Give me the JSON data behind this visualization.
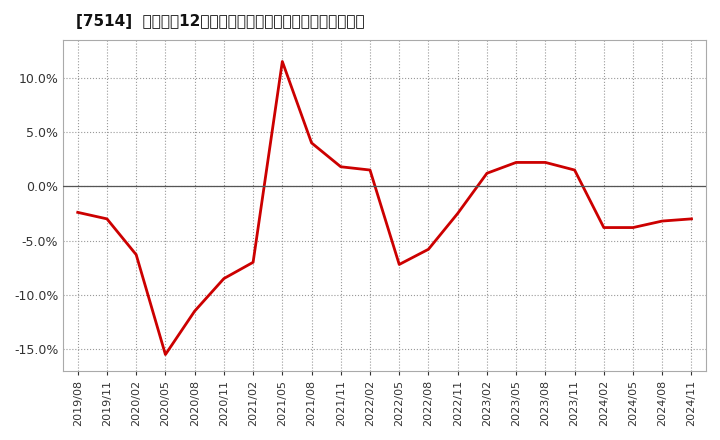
{
  "title": "[7514]  売上高の12か月移動合計の対前年同期増減率の推移",
  "line_color": "#cc0000",
  "background_color": "#ffffff",
  "plot_bg_color": "#ffffff",
  "grid_color": "#999999",
  "zero_line_color": "#555555",
  "ylim": [
    -0.17,
    0.135
  ],
  "yticks": [
    -0.15,
    -0.1,
    -0.05,
    0.0,
    0.05,
    0.1
  ],
  "dates": [
    "2019/08",
    "2019/11",
    "2020/02",
    "2020/05",
    "2020/08",
    "2020/11",
    "2021/02",
    "2021/05",
    "2021/08",
    "2021/11",
    "2022/02",
    "2022/05",
    "2022/08",
    "2022/11",
    "2023/02",
    "2023/05",
    "2023/08",
    "2023/11",
    "2024/02",
    "2024/05",
    "2024/08",
    "2024/11"
  ],
  "values": [
    -0.024,
    -0.03,
    -0.063,
    -0.155,
    -0.115,
    -0.085,
    -0.07,
    0.115,
    0.04,
    0.018,
    0.015,
    -0.072,
    -0.058,
    -0.025,
    0.012,
    0.022,
    0.022,
    0.015,
    -0.038,
    -0.038,
    -0.032,
    -0.03
  ],
  "line_width": 2.0,
  "title_fontsize": 11,
  "tick_fontsize": 8,
  "ytick_fontsize": 9
}
